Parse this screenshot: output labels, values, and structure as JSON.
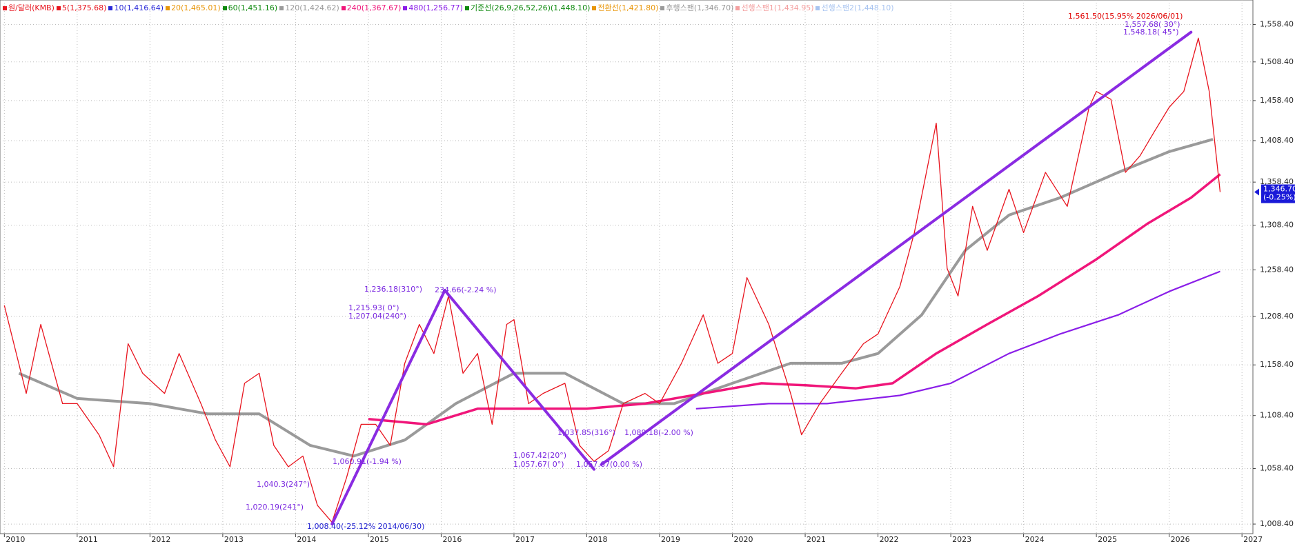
{
  "chart_data": {
    "type": "line",
    "log_scale": true,
    "grid": true,
    "xlim": [
      2009.94,
      2027.15
    ],
    "ylim": [
      1000,
      1592
    ],
    "xticks": [
      2010,
      2011,
      2012,
      2013,
      2014,
      2015,
      2016,
      2017,
      2018,
      2019,
      2020,
      2021,
      2022,
      2023,
      2024,
      2025,
      2026,
      2027
    ],
    "yticks": [
      {
        "value": 1008.4,
        "label": "1,008.40"
      },
      {
        "value": 1058.4,
        "label": "1,058.40"
      },
      {
        "value": 1108.4,
        "label": "1,108.40"
      },
      {
        "value": 1158.4,
        "label": "1,158.40"
      },
      {
        "value": 1208.4,
        "label": "1,208.40"
      },
      {
        "value": 1258.4,
        "label": "1,258.40"
      },
      {
        "value": 1308.4,
        "label": "1,308.40"
      },
      {
        "value": 1358.4,
        "label": "1,358.40"
      },
      {
        "value": 1408.4,
        "label": "1,408.40"
      },
      {
        "value": 1458.4,
        "label": "1,458.40"
      },
      {
        "value": 1508.4,
        "label": "1,508.40"
      },
      {
        "value": 1558.4,
        "label": "1,558.40"
      }
    ],
    "series": [
      {
        "name": "원/달러(KMB)",
        "color": "#e8141e",
        "x": [
          2010.0,
          2010.3,
          2010.5,
          2010.8,
          2011.0,
          2011.3,
          2011.5,
          2011.7,
          2011.9,
          2012.2,
          2012.4,
          2012.7,
          2012.9,
          2013.1,
          2013.3,
          2013.5,
          2013.7,
          2013.9,
          2014.1,
          2014.3,
          2014.5,
          2014.7,
          2014.9,
          2015.1,
          2015.3,
          2015.5,
          2015.7,
          2015.9,
          2016.1,
          2016.3,
          2016.5,
          2016.7,
          2016.9,
          2017.0,
          2017.2,
          2017.4,
          2017.7,
          2017.9,
          2018.1,
          2018.3,
          2018.5,
          2018.8,
          2019.0,
          2019.3,
          2019.6,
          2019.8,
          2020.0,
          2020.2,
          2020.5,
          2020.8,
          2020.95,
          2021.2,
          2021.5,
          2021.8,
          2022.0,
          2022.3,
          2022.5,
          2022.8,
          2022.95,
          2023.1,
          2023.3,
          2023.5,
          2023.8,
          2024.0,
          2024.3,
          2024.6,
          2024.9,
          2025.0,
          2025.2,
          2025.4,
          2025.6,
          2025.8,
          2026.0,
          2026.2,
          2026.4,
          2026.55,
          2026.7
        ],
        "values": [
          1220,
          1130,
          1200,
          1120,
          1120,
          1090,
          1060,
          1180,
          1150,
          1130,
          1170,
          1120,
          1085,
          1060,
          1140,
          1150,
          1080,
          1060,
          1070,
          1025,
          1010,
          1050,
          1100,
          1100,
          1080,
          1160,
          1200,
          1170,
          1230,
          1150,
          1170,
          1100,
          1200,
          1205,
          1120,
          1130,
          1140,
          1080,
          1065,
          1075,
          1120,
          1130,
          1120,
          1160,
          1210,
          1160,
          1170,
          1250,
          1200,
          1130,
          1090,
          1120,
          1150,
          1180,
          1190,
          1240,
          1300,
          1430,
          1260,
          1230,
          1330,
          1280,
          1350,
          1300,
          1370,
          1330,
          1450,
          1470,
          1460,
          1370,
          1390,
          1420,
          1450,
          1470,
          1540,
          1470,
          1346.7
        ]
      },
      {
        "name": "5(1,375.68)",
        "color": "#e8141e"
      },
      {
        "name": "10(1,416.64)",
        "color": "#2a2ad8"
      },
      {
        "name": "20(1,465.01)",
        "color": "#e8960a"
      },
      {
        "name": "60(1,451.16)",
        "color": "#108a10"
      },
      {
        "name": "120(1,424.62)",
        "color": "#9a9a9a",
        "x": [
          2010.2,
          2011.0,
          2012.0,
          2012.8,
          2013.5,
          2014.2,
          2014.8,
          2015.5,
          2016.2,
          2017.0,
          2017.7,
          2018.5,
          2019.2,
          2020.0,
          2020.8,
          2021.5,
          2022.0,
          2022.6,
          2023.2,
          2023.8,
          2024.5,
          2025.3,
          2026.0,
          2026.6
        ],
        "values": [
          1150,
          1125,
          1120,
          1110,
          1110,
          1080,
          1070,
          1085,
          1120,
          1150,
          1150,
          1120,
          1120,
          1140,
          1160,
          1160,
          1170,
          1210,
          1280,
          1320,
          1340,
          1370,
          1395,
          1410
        ]
      },
      {
        "name": "240(1,367.67)",
        "color": "#f0167a",
        "x": [
          2015.0,
          2015.8,
          2016.5,
          2017.2,
          2018.0,
          2018.8,
          2019.6,
          2020.4,
          2021.0,
          2021.7,
          2022.2,
          2022.8,
          2023.5,
          2024.2,
          2025.0,
          2025.7,
          2026.3,
          2026.7
        ],
        "values": [
          1105,
          1100,
          1115,
          1115,
          1115,
          1120,
          1130,
          1140,
          1138,
          1135,
          1140,
          1170,
          1200,
          1230,
          1270,
          1310,
          1340,
          1367.67
        ]
      },
      {
        "name": "480(1,256.77)",
        "color": "#8a1ee8",
        "x": [
          2019.5,
          2020.5,
          2021.3,
          2022.3,
          2023.0,
          2023.8,
          2024.5,
          2025.3,
          2026.0,
          2026.7
        ],
        "values": [
          1115,
          1120,
          1120,
          1128,
          1140,
          1170,
          1190,
          1210,
          1235,
          1256.77
        ]
      },
      {
        "name": "기준선(26,9,26,52,26)(1,448.10)",
        "color": "#108a10"
      },
      {
        "name": "전환선(1,421.80)",
        "color": "#e8960a"
      },
      {
        "name": "후행스팬(1,346.70)",
        "color": "#9a9a9a"
      },
      {
        "name": "선행스팬1(1,434.95)",
        "color": "#f4a0a0"
      },
      {
        "name": "선행스팬2(1,448.10)",
        "color": "#a8c4f0"
      }
    ],
    "trendlines": [
      {
        "color": "#8a2be2",
        "x": [
          2014.5,
          2016.05
        ],
        "values": [
          1008.4,
          1236.18
        ]
      },
      {
        "color": "#8a2be2",
        "x": [
          2016.05,
          2018.1
        ],
        "values": [
          1236.18,
          1057.67
        ]
      },
      {
        "color": "#8a2be2",
        "x": [
          2018.2,
          2026.3
        ],
        "values": [
          1062,
          1548
        ]
      }
    ],
    "annotations": [
      "1,561.50(15.95% 2026/06/01)",
      "1,557.68( 30°)",
      "1,548.18( 45°)",
      "1,008.40(-25.12% 2014/06/30)",
      "1,236.18(310°)",
      "234.66(-2.24 %)",
      "1,215.93( 0°)",
      "1,207.04(240°)",
      "1,040.3(247°)",
      "1,020.19(241°)",
      "1,060.91(-1.94 %)",
      "1,067.42(20°)",
      "1,057.67( 0°)",
      "1,037.85(316°)",
      "1,089.18(-2.00 %)",
      "1,057.67(0.00 %)"
    ],
    "last_label": "1,346.70",
    "last_value": 1346.7,
    "last_change": "(-0.25%)"
  }
}
